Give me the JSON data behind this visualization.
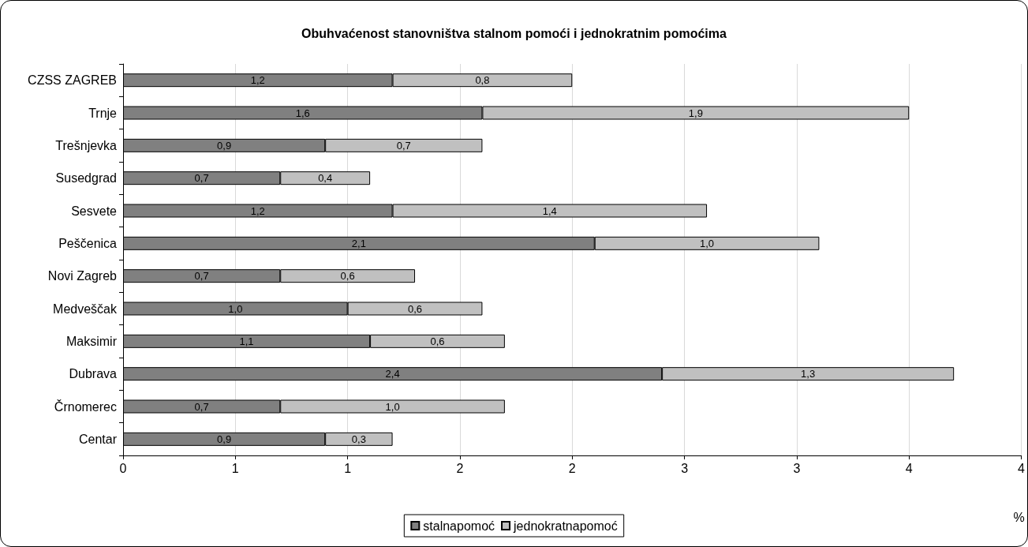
{
  "chart_data": {
    "type": "bar",
    "orientation": "horizontal",
    "stacked": true,
    "title": "Obuhvaćenost stanovništva stalnom pomoći i jednokratnim pomoćima",
    "xlabel": "%",
    "categories": [
      "CZSS ZAGREB",
      "Trnje",
      "Trešnjevka",
      "Susedgrad",
      "Sesvete",
      "Peščenica",
      "Novi Zagreb",
      "Medveščak",
      "Maksimir",
      "Dubrava",
      "Črnomerec",
      "Centar"
    ],
    "series": [
      {
        "name": "stalnapomoć",
        "color": "#808080",
        "values": [
          1.2,
          1.6,
          0.9,
          0.7,
          1.2,
          2.1,
          0.7,
          1.0,
          1.1,
          2.4,
          0.7,
          0.9
        ],
        "value_labels": [
          "1,2",
          "1,6",
          "0,9",
          "0,7",
          "1,2",
          "2,1",
          "0,7",
          "1,0",
          "1,1",
          "2,4",
          "0,7",
          "0,9"
        ]
      },
      {
        "name": "jednokratnapomoć",
        "color": "#c0c0c0",
        "values": [
          0.8,
          1.9,
          0.7,
          0.4,
          1.4,
          1.0,
          0.6,
          0.6,
          0.6,
          1.3,
          1.0,
          0.3
        ],
        "value_labels": [
          "0,8",
          "1,9",
          "0,7",
          "0,4",
          "1,4",
          "1,0",
          "0,6",
          "0,6",
          "0,6",
          "1,3",
          "1,0",
          "0,3"
        ]
      }
    ],
    "xlim": [
      0,
      4
    ],
    "xticks": [
      0,
      {
        "value": 0.5,
        "label": "1"
      },
      1,
      {
        "value": 1.5,
        "label": "2"
      },
      2,
      {
        "value": 2.5,
        "label": "3"
      },
      3,
      {
        "value": 3.5,
        "label": "4"
      },
      4
    ],
    "grid": "x",
    "legend": "bottom"
  }
}
